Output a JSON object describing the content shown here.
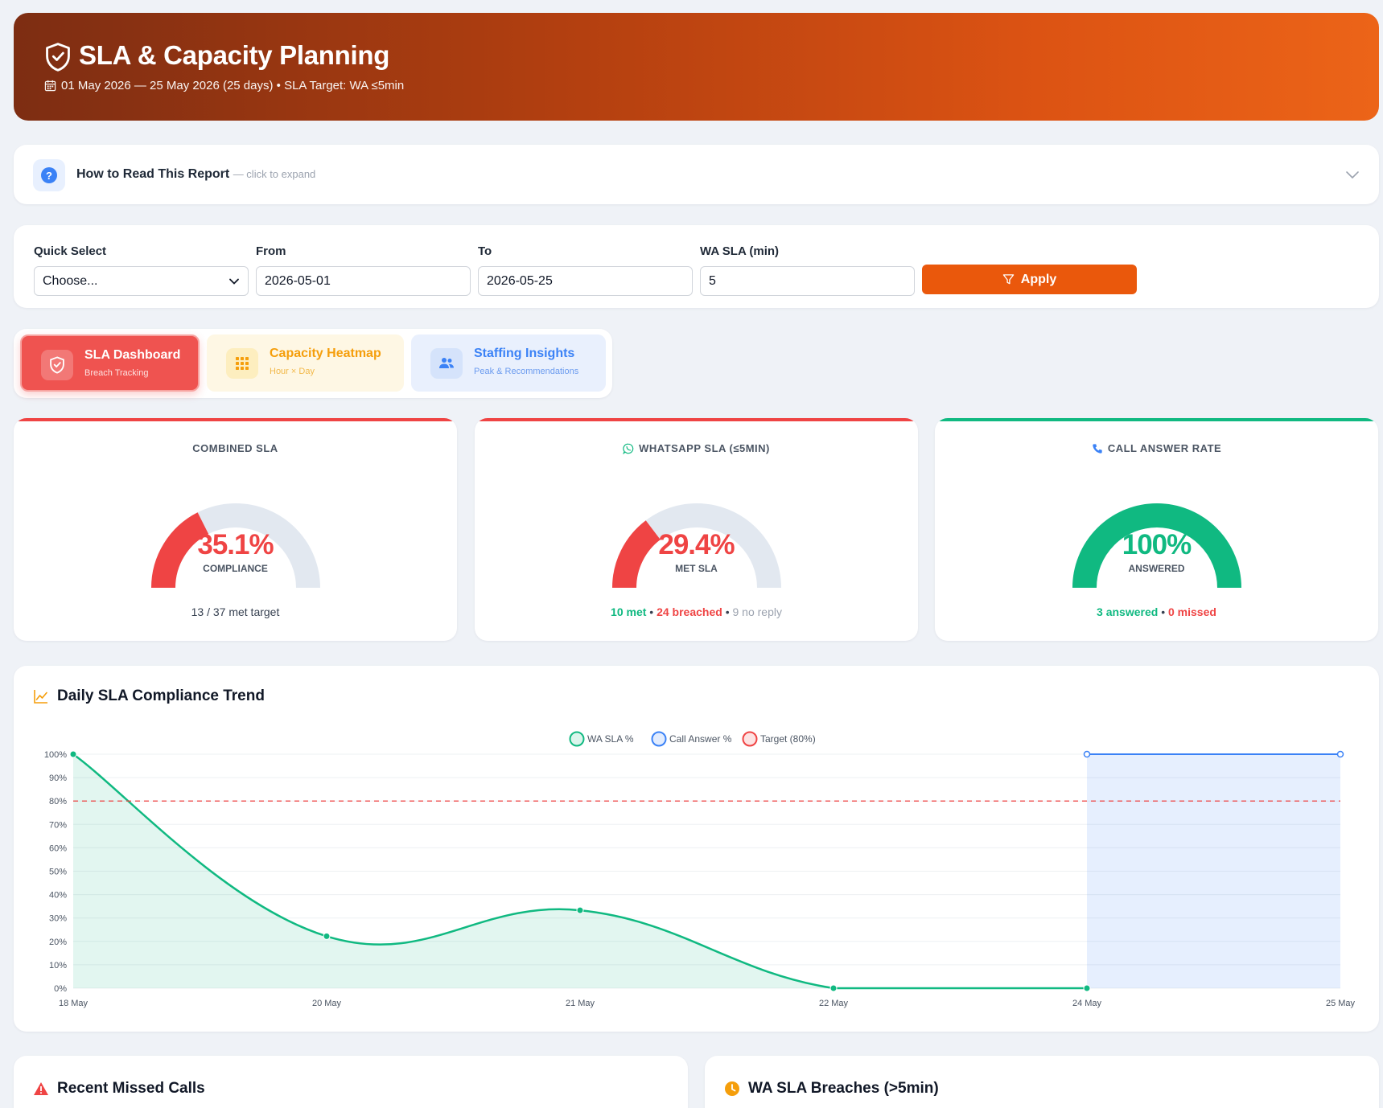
{
  "header": {
    "title": "SLA & Capacity Planning",
    "subtitle": "01 May 2026 — 25 May 2026 (25 days) • SLA Target: WA ≤5min"
  },
  "howto": {
    "title": "How to Read This Report",
    "hint": "— click to expand"
  },
  "filters": {
    "quick_select": {
      "label": "Quick Select",
      "value": "Choose..."
    },
    "from": {
      "label": "From",
      "value": "2026-05-01"
    },
    "to": {
      "label": "To",
      "value": "2026-05-25"
    },
    "wa_sla": {
      "label": "WA SLA (min)",
      "value": "5"
    },
    "apply_label": "Apply"
  },
  "tabs": [
    {
      "label": "SLA Dashboard",
      "sub": "Breach Tracking",
      "icon": "shield-icon"
    },
    {
      "label": "Capacity Heatmap",
      "sub": "Hour × Day",
      "icon": "grid-icon"
    },
    {
      "label": "Staffing Insights",
      "sub": "Peak & Recommendations",
      "icon": "users-icon"
    }
  ],
  "kpis": {
    "combined": {
      "title": "COMBINED SLA",
      "value": "35.1%",
      "fraction": 0.351,
      "label": "COMPLIANCE",
      "footer": "13 / 37 met target",
      "color": "#ef4444"
    },
    "whatsapp": {
      "title": "WHATSAPP SLA (≤5MIN)",
      "value": "29.4%",
      "fraction": 0.294,
      "label": "MET SLA",
      "met": "10 met",
      "breached": "24 breached",
      "noreply": "9 no reply",
      "color": "#ef4444"
    },
    "call": {
      "title": "CALL ANSWER RATE",
      "value": "100%",
      "fraction": 1.0,
      "label": "ANSWERED",
      "answered": "3 answered",
      "missed": "0 missed",
      "color": "#10b981"
    },
    "separator": "•"
  },
  "trend": {
    "title": "Daily SLA Compliance Trend"
  },
  "chart_data": {
    "type": "line",
    "categories": [
      "18 May",
      "20 May",
      "21 May",
      "22 May",
      "24 May",
      "25 May"
    ],
    "series": [
      {
        "name": "WA SLA %",
        "values": [
          100,
          22.2,
          33.3,
          0,
          0,
          null
        ],
        "color": "#10b981"
      },
      {
        "name": "Call Answer %",
        "values": [
          null,
          null,
          null,
          null,
          100,
          100
        ],
        "color": "#3b82f6"
      },
      {
        "name": "Target (80%)",
        "values": [
          80,
          80,
          80,
          80,
          80,
          80
        ],
        "color": "#ef4444"
      }
    ],
    "y_ticks": [
      "0%",
      "10%",
      "20%",
      "30%",
      "40%",
      "50%",
      "60%",
      "70%",
      "80%",
      "90%",
      "100%"
    ],
    "ylim": [
      0,
      100
    ],
    "legend": "top-center",
    "grid": true
  },
  "bottom": {
    "missed_calls_title": "Recent Missed Calls",
    "breaches_title": "WA SLA Breaches (>5min)"
  }
}
